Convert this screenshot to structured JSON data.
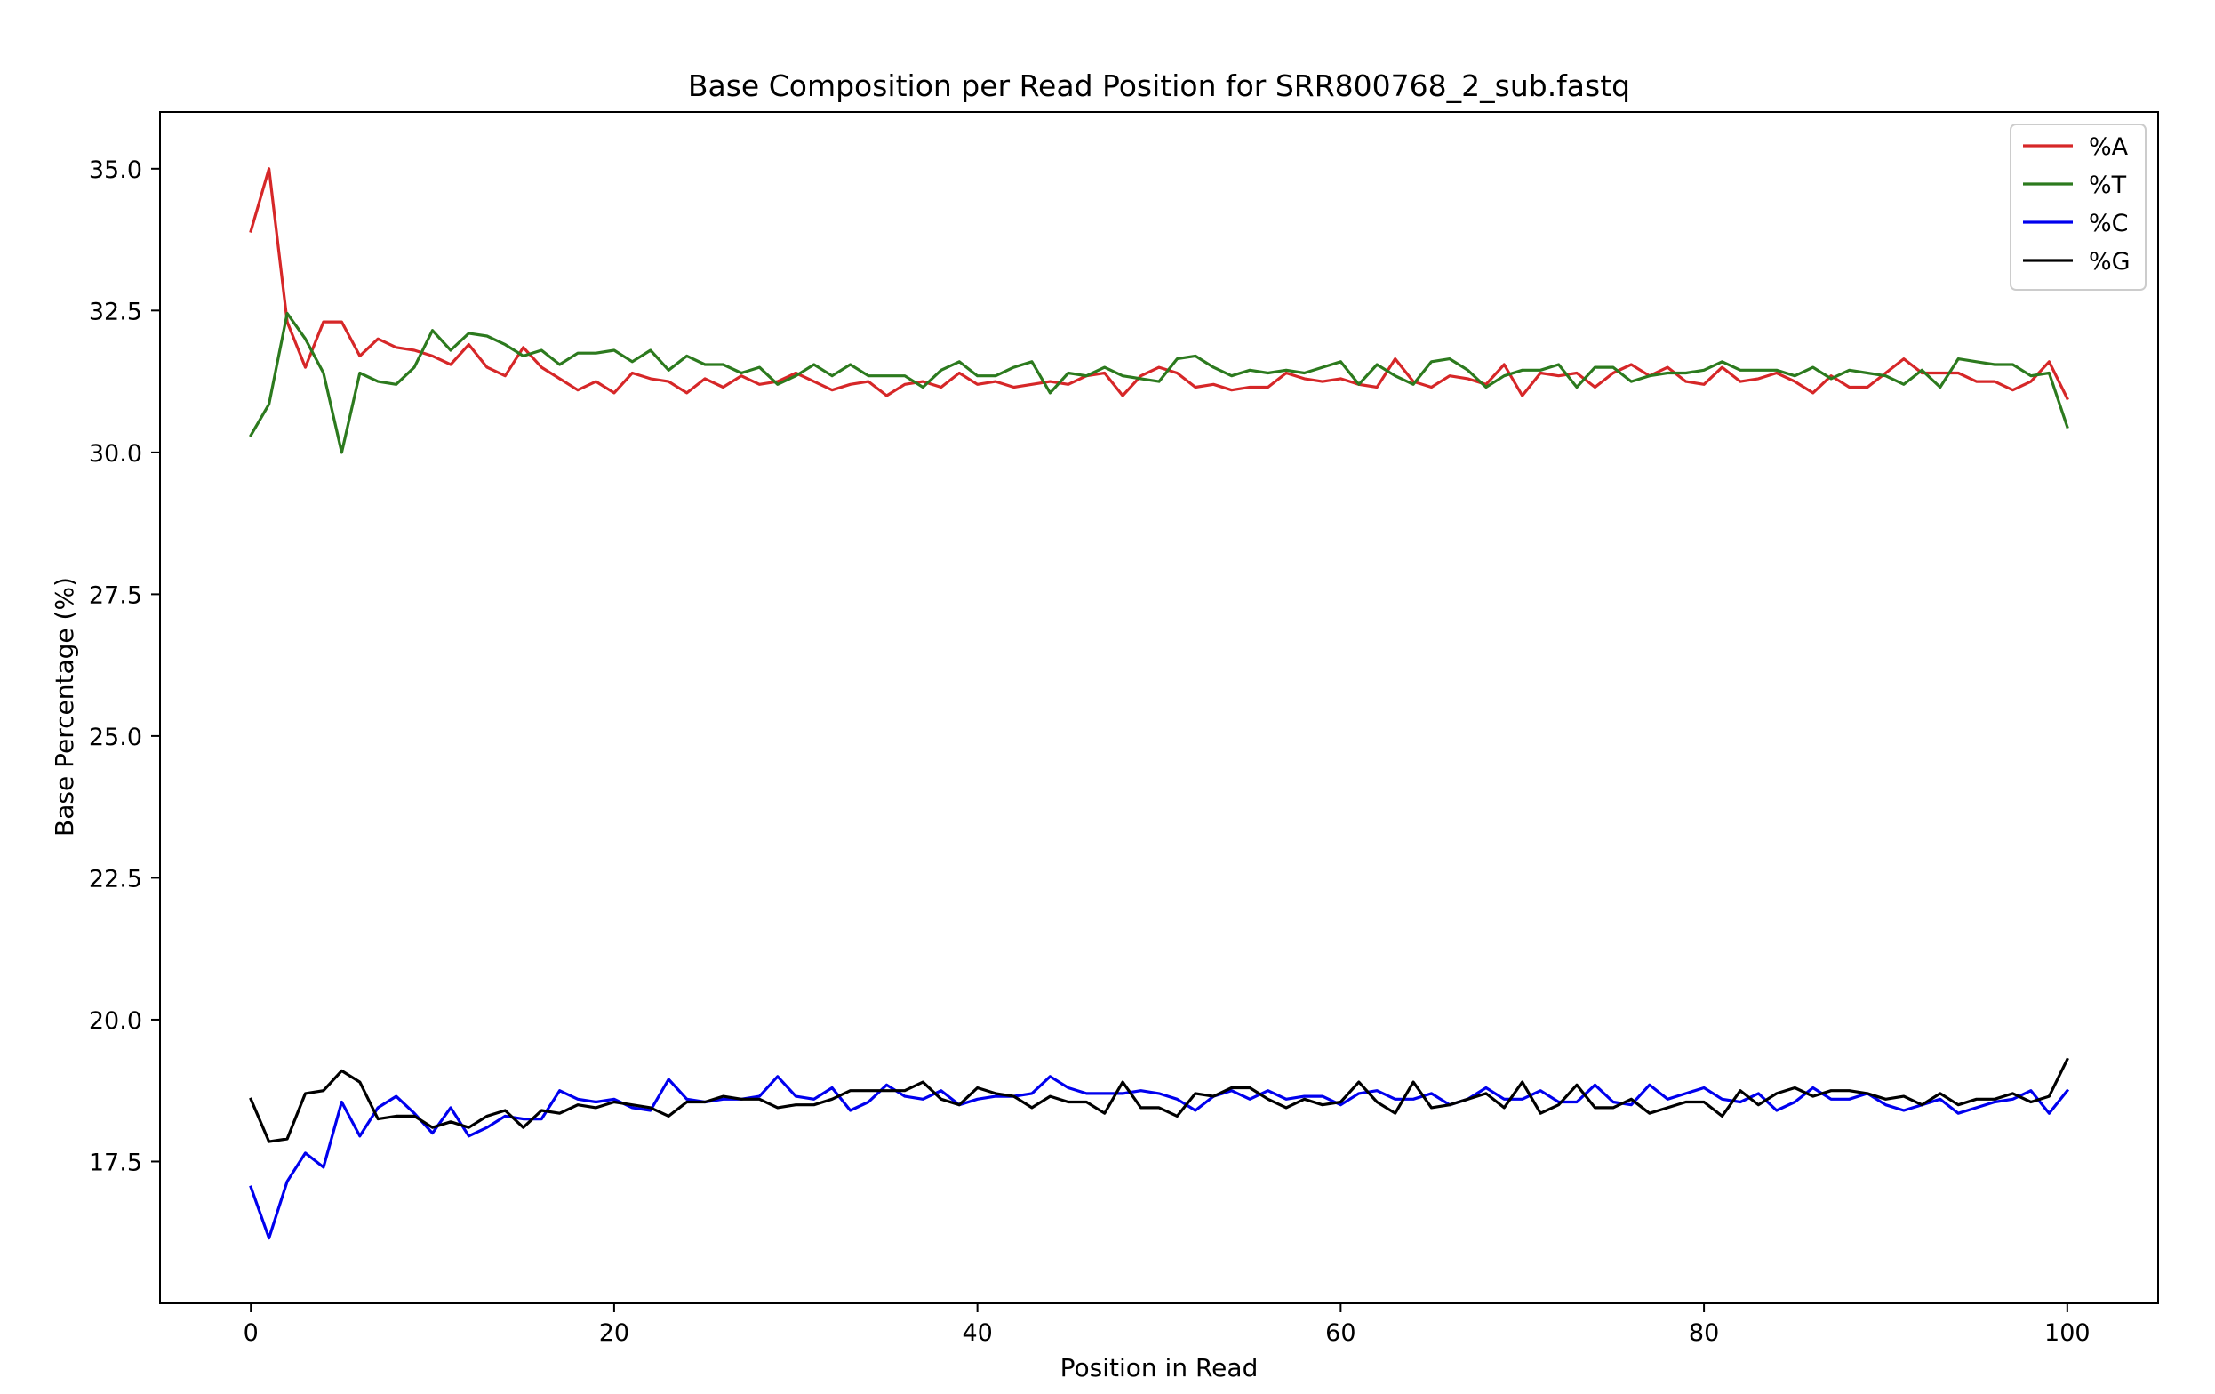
{
  "chart_data": {
    "type": "line",
    "title": "Base Composition per Read Position for SRR800768_2_sub.fastq",
    "xlabel": "Position in Read",
    "ylabel": "Base Percentage (%)",
    "xlim": [
      -5,
      105
    ],
    "ylim": [
      15.0,
      36.0
    ],
    "xticks": [
      0,
      20,
      40,
      60,
      80,
      100
    ],
    "xtick_labels": [
      "0",
      "20",
      "40",
      "60",
      "80",
      "100"
    ],
    "yticks": [
      17.5,
      20.0,
      22.5,
      25.0,
      27.5,
      30.0,
      32.5,
      35.0
    ],
    "ytick_labels": [
      "17.5",
      "20.0",
      "22.5",
      "25.0",
      "27.5",
      "30.0",
      "32.5",
      "35.0"
    ],
    "grid": false,
    "legend_position": "top-right",
    "x": [
      0,
      1,
      2,
      3,
      4,
      5,
      6,
      7,
      8,
      9,
      10,
      11,
      12,
      13,
      14,
      15,
      16,
      17,
      18,
      19,
      20,
      21,
      22,
      23,
      24,
      25,
      26,
      27,
      28,
      29,
      30,
      31,
      32,
      33,
      34,
      35,
      36,
      37,
      38,
      39,
      40,
      41,
      42,
      43,
      44,
      45,
      46,
      47,
      48,
      49,
      50,
      51,
      52,
      53,
      54,
      55,
      56,
      57,
      58,
      59,
      60,
      61,
      62,
      63,
      64,
      65,
      66,
      67,
      68,
      69,
      70,
      71,
      72,
      73,
      74,
      75,
      76,
      77,
      78,
      79,
      80,
      81,
      82,
      83,
      84,
      85,
      86,
      87,
      88,
      89,
      90,
      91,
      92,
      93,
      94,
      95,
      96,
      97,
      98,
      99,
      100
    ],
    "series": [
      {
        "name": "%A",
        "color": "#d62728",
        "values": [
          33.9,
          35.0,
          32.3,
          31.5,
          32.3,
          32.3,
          31.7,
          32.0,
          31.85,
          31.8,
          31.7,
          31.55,
          31.9,
          31.5,
          31.35,
          31.85,
          31.5,
          31.3,
          31.1,
          31.25,
          31.05,
          31.4,
          31.3,
          31.25,
          31.05,
          31.3,
          31.15,
          31.35,
          31.2,
          31.25,
          31.4,
          31.25,
          31.1,
          31.2,
          31.25,
          31.0,
          31.2,
          31.25,
          31.15,
          31.4,
          31.2,
          31.25,
          31.15,
          31.2,
          31.25,
          31.2,
          31.35,
          31.4,
          31.0,
          31.35,
          31.5,
          31.4,
          31.15,
          31.2,
          31.1,
          31.15,
          31.15,
          31.4,
          31.3,
          31.25,
          31.3,
          31.2,
          31.15,
          31.65,
          31.25,
          31.15,
          31.35,
          31.3,
          31.2,
          31.55,
          31.0,
          31.4,
          31.35,
          31.4,
          31.15,
          31.4,
          31.55,
          31.35,
          31.5,
          31.25,
          31.2,
          31.5,
          31.25,
          31.3,
          31.4,
          31.25,
          31.05,
          31.35,
          31.15,
          31.15,
          31.4,
          31.65,
          31.4,
          31.4,
          31.4,
          31.25,
          31.25,
          31.1,
          31.25,
          31.6,
          30.95
        ]
      },
      {
        "name": "%T",
        "color": "#2c7a1e",
        "values": [
          30.3,
          30.85,
          32.45,
          32.0,
          31.4,
          30.0,
          31.4,
          31.25,
          31.2,
          31.5,
          32.15,
          31.8,
          32.1,
          32.05,
          31.9,
          31.7,
          31.8,
          31.55,
          31.75,
          31.75,
          31.8,
          31.6,
          31.8,
          31.45,
          31.7,
          31.55,
          31.55,
          31.4,
          31.5,
          31.2,
          31.35,
          31.55,
          31.35,
          31.55,
          31.35,
          31.35,
          31.35,
          31.15,
          31.45,
          31.6,
          31.35,
          31.35,
          31.5,
          31.6,
          31.05,
          31.4,
          31.35,
          31.5,
          31.35,
          31.3,
          31.25,
          31.65,
          31.7,
          31.5,
          31.35,
          31.45,
          31.4,
          31.45,
          31.4,
          31.5,
          31.6,
          31.2,
          31.55,
          31.35,
          31.2,
          31.6,
          31.65,
          31.45,
          31.15,
          31.35,
          31.45,
          31.45,
          31.55,
          31.15,
          31.5,
          31.5,
          31.25,
          31.35,
          31.4,
          31.4,
          31.45,
          31.6,
          31.45,
          31.45,
          31.45,
          31.35,
          31.5,
          31.3,
          31.45,
          31.4,
          31.35,
          31.2,
          31.45,
          31.15,
          31.65,
          31.6,
          31.55,
          31.55,
          31.35,
          31.4,
          30.45
        ]
      },
      {
        "name": "%C",
        "color": "#0000ee",
        "values": [
          17.05,
          16.15,
          17.15,
          17.65,
          17.4,
          18.55,
          17.95,
          18.45,
          18.65,
          18.35,
          18.0,
          18.45,
          17.95,
          18.1,
          18.3,
          18.25,
          18.25,
          18.75,
          18.6,
          18.55,
          18.6,
          18.45,
          18.4,
          18.95,
          18.6,
          18.55,
          18.6,
          18.6,
          18.65,
          19.0,
          18.65,
          18.6,
          18.8,
          18.4,
          18.55,
          18.85,
          18.65,
          18.6,
          18.75,
          18.5,
          18.6,
          18.65,
          18.65,
          18.7,
          19.0,
          18.8,
          18.7,
          18.7,
          18.7,
          18.75,
          18.7,
          18.6,
          18.4,
          18.65,
          18.75,
          18.6,
          18.75,
          18.6,
          18.65,
          18.65,
          18.5,
          18.7,
          18.75,
          18.6,
          18.6,
          18.7,
          18.5,
          18.6,
          18.8,
          18.6,
          18.6,
          18.75,
          18.55,
          18.55,
          18.85,
          18.55,
          18.5,
          18.85,
          18.6,
          18.7,
          18.8,
          18.6,
          18.55,
          18.7,
          18.4,
          18.55,
          18.8,
          18.6,
          18.6,
          18.7,
          18.5,
          18.4,
          18.5,
          18.6,
          18.35,
          18.45,
          18.55,
          18.6,
          18.75,
          18.35,
          18.75
        ]
      },
      {
        "name": "%G",
        "color": "#000000",
        "values": [
          18.6,
          17.85,
          17.9,
          18.7,
          18.75,
          19.1,
          18.9,
          18.25,
          18.3,
          18.3,
          18.1,
          18.2,
          18.1,
          18.3,
          18.4,
          18.1,
          18.4,
          18.35,
          18.5,
          18.45,
          18.55,
          18.5,
          18.45,
          18.3,
          18.55,
          18.55,
          18.65,
          18.6,
          18.6,
          18.45,
          18.5,
          18.5,
          18.6,
          18.75,
          18.75,
          18.75,
          18.75,
          18.9,
          18.6,
          18.5,
          18.8,
          18.7,
          18.65,
          18.45,
          18.65,
          18.55,
          18.55,
          18.35,
          18.9,
          18.45,
          18.45,
          18.3,
          18.7,
          18.65,
          18.8,
          18.8,
          18.6,
          18.45,
          18.6,
          18.5,
          18.55,
          18.9,
          18.55,
          18.35,
          18.9,
          18.45,
          18.5,
          18.6,
          18.7,
          18.45,
          18.9,
          18.35,
          18.5,
          18.85,
          18.45,
          18.45,
          18.6,
          18.35,
          18.45,
          18.55,
          18.55,
          18.3,
          18.75,
          18.5,
          18.7,
          18.8,
          18.65,
          18.75,
          18.75,
          18.7,
          18.6,
          18.65,
          18.5,
          18.7,
          18.5,
          18.6,
          18.6,
          18.7,
          18.55,
          18.65,
          19.3
        ]
      }
    ]
  }
}
